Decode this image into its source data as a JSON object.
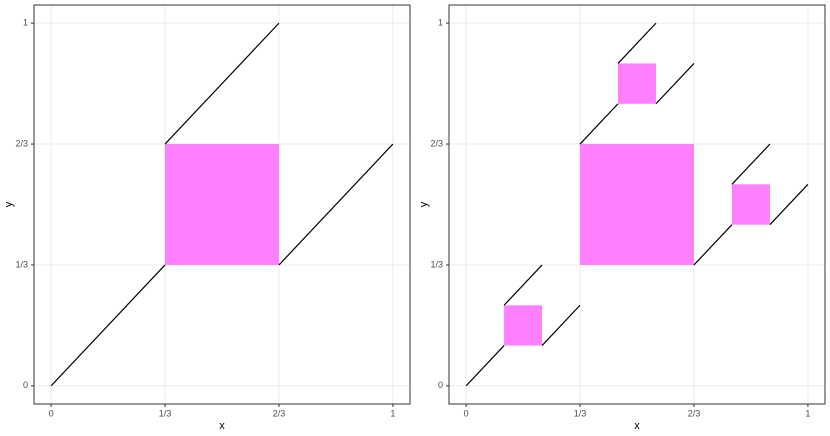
{
  "chart_data": [
    {
      "type": "segments",
      "x_label": "x",
      "y_label": "y",
      "xlim": [
        -0.05,
        1.05
      ],
      "ylim": [
        -0.05,
        1.05
      ],
      "xticks": [
        0,
        {
          "value": 0.333333,
          "label": "1/3"
        },
        {
          "value": 0.666667,
          "label": "2/3"
        },
        1
      ],
      "yticks": [
        0,
        {
          "value": 0.333333,
          "label": "1/3"
        },
        {
          "value": 0.666667,
          "label": "2/3"
        },
        1
      ],
      "line_color": "#000000",
      "fill_color": "#ff80ff",
      "grid": true,
      "segments": [
        {
          "x": [
            0,
            0.333333
          ],
          "y": [
            0,
            0.333333
          ]
        },
        {
          "x": [
            0.333333,
            0.666667
          ],
          "y": [
            0.666667,
            1
          ]
        },
        {
          "x": [
            0.666667,
            1
          ],
          "y": [
            0.333333,
            0.666667
          ]
        }
      ],
      "rects": [
        {
          "x": [
            0.333333,
            0.666667
          ],
          "y": [
            0.333333,
            0.666667
          ]
        }
      ]
    },
    {
      "type": "segments",
      "x_label": "x",
      "y_label": "y",
      "xlim": [
        -0.05,
        1.05
      ],
      "ylim": [
        -0.05,
        1.05
      ],
      "xticks": [
        0,
        {
          "value": 0.333333,
          "label": "1/3"
        },
        {
          "value": 0.666667,
          "label": "2/3"
        },
        1
      ],
      "yticks": [
        0,
        {
          "value": 0.333333,
          "label": "1/3"
        },
        {
          "value": 0.666667,
          "label": "2/3"
        },
        1
      ],
      "line_color": "#000000",
      "fill_color": "#ff80ff",
      "grid": true,
      "segments": [
        {
          "x": [
            0,
            0.111111
          ],
          "y": [
            0,
            0.111111
          ]
        },
        {
          "x": [
            0.111111,
            0.222222
          ],
          "y": [
            0.222222,
            0.333333
          ]
        },
        {
          "x": [
            0.222222,
            0.333333
          ],
          "y": [
            0.111111,
            0.222222
          ]
        },
        {
          "x": [
            0.333333,
            0.444444
          ],
          "y": [
            0.666667,
            0.777778
          ]
        },
        {
          "x": [
            0.444444,
            0.555556
          ],
          "y": [
            0.888889,
            1
          ]
        },
        {
          "x": [
            0.555556,
            0.666667
          ],
          "y": [
            0.777778,
            0.888889
          ]
        },
        {
          "x": [
            0.666667,
            0.777778
          ],
          "y": [
            0.333333,
            0.444444
          ]
        },
        {
          "x": [
            0.777778,
            0.888889
          ],
          "y": [
            0.555556,
            0.666667
          ]
        },
        {
          "x": [
            0.888889,
            1
          ],
          "y": [
            0.444444,
            0.555556
          ]
        }
      ],
      "rects": [
        {
          "x": [
            0.333333,
            0.666667
          ],
          "y": [
            0.333333,
            0.666667
          ]
        },
        {
          "x": [
            0.111111,
            0.222222
          ],
          "y": [
            0.111111,
            0.222222
          ]
        },
        {
          "x": [
            0.444444,
            0.555556
          ],
          "y": [
            0.777778,
            0.888889
          ]
        },
        {
          "x": [
            0.777778,
            0.888889
          ],
          "y": [
            0.444444,
            0.555556
          ]
        }
      ]
    }
  ]
}
